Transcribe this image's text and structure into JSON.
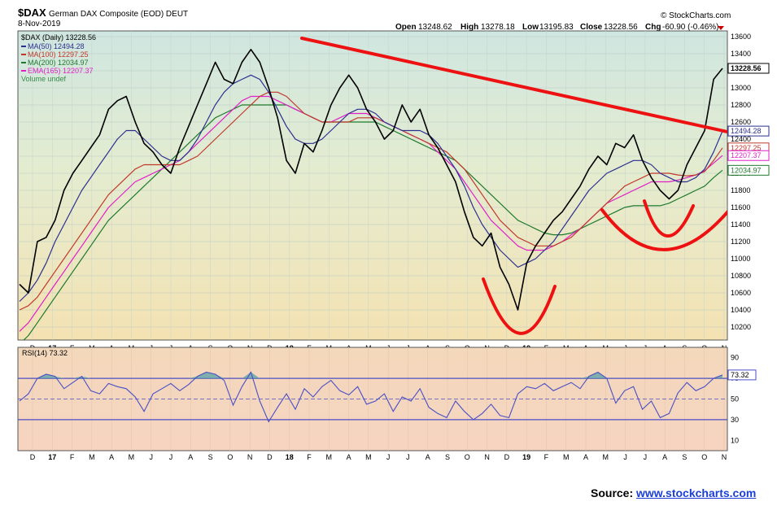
{
  "header": {
    "symbol": "$DAX",
    "name": "German DAX Composite (EOD) DEUT",
    "date": "8-Nov-2019",
    "brand": "© StockCharts.com",
    "open_label": "Open",
    "open": "13248.62",
    "high_label": "High",
    "high": "13278.18",
    "low_label": "Low",
    "low": "13195.83",
    "close_label": "Close",
    "close": "13228.56",
    "chg_label": "Chg",
    "chg": "-60.90 (-0.46%)"
  },
  "legend": {
    "price": "$DAX (Daily) 13228.56",
    "ma50": "MA(50) 12494.28",
    "ma100": "MA(100) 12297.25",
    "ma200": "MA(200) 12034.97",
    "ema165": "EMA(165) 12207.37",
    "volume": "Volume undef"
  },
  "rsi_legend": "RSI(14) 73.32",
  "source": {
    "label": "Source:",
    "link": "www.stockcharts.com"
  },
  "colors": {
    "price": "#000000",
    "ma50": "#2b2f8f",
    "ma100": "#c0392b",
    "ma200": "#1e7a2e",
    "ema165": "#e020c8",
    "annotation": "#ee1111",
    "rsi": "#4a4fc4"
  },
  "chart_data": [
    {
      "type": "line",
      "title": "$DAX German DAX Composite (EOD) DEUT",
      "ylim": [
        10000,
        13700
      ],
      "yticks": [
        "13600",
        "13400",
        "13200",
        "13000",
        "12800",
        "12600",
        "12400",
        "12200",
        "12000",
        "11800",
        "11600",
        "11400",
        "11200",
        "11000",
        "10800",
        "10600",
        "10400",
        "10200"
      ],
      "x_ticks": [
        "D",
        "17",
        "F",
        "M",
        "A",
        "M",
        "J",
        "J",
        "A",
        "S",
        "O",
        "N",
        "D",
        "18",
        "F",
        "M",
        "A",
        "M",
        "J",
        "J",
        "A",
        "S",
        "O",
        "N",
        "D",
        "19",
        "F",
        "M",
        "A",
        "M",
        "J",
        "J",
        "A",
        "S",
        "O",
        "N"
      ],
      "value_labels": [
        {
          "value": 13228.56,
          "label": "13228.56",
          "series": "price"
        },
        {
          "value": 12494.28,
          "label": "12494.28",
          "series": "ma50"
        },
        {
          "value": 12297.25,
          "label": "12297.25",
          "series": "ma100"
        },
        {
          "value": 12207.37,
          "label": "12207.37",
          "series": "ema165"
        },
        {
          "value": 12034.97,
          "label": "12034.97",
          "series": "ma200"
        }
      ],
      "series": [
        {
          "name": "$DAX (Daily)",
          "key": "price",
          "values": [
            10700,
            10600,
            11200,
            11250,
            11450,
            11800,
            12000,
            12150,
            12300,
            12450,
            12750,
            12850,
            12900,
            12600,
            12350,
            12250,
            12100,
            12000,
            12300,
            12550,
            12800,
            13050,
            13300,
            13100,
            13050,
            13300,
            13450,
            13300,
            13000,
            12650,
            12150,
            12000,
            12350,
            12250,
            12500,
            12800,
            13000,
            13150,
            13000,
            12750,
            12600,
            12400,
            12500,
            12800,
            12600,
            12750,
            12450,
            12300,
            12100,
            11900,
            11550,
            11250,
            11150,
            11300,
            10900,
            10700,
            10400,
            10950,
            11150,
            11300,
            11450,
            11550,
            11700,
            11850,
            12050,
            12200,
            12100,
            12350,
            12300,
            12450,
            12150,
            11950,
            11800,
            11700,
            11800,
            12100,
            12300,
            12500,
            13100,
            13228.56
          ]
        },
        {
          "name": "MA(50)",
          "key": "ma50",
          "values": [
            10500,
            10600,
            10750,
            10950,
            11200,
            11400,
            11600,
            11800,
            11950,
            12100,
            12250,
            12400,
            12500,
            12500,
            12400,
            12300,
            12200,
            12150,
            12150,
            12250,
            12400,
            12600,
            12800,
            12950,
            13050,
            13100,
            13150,
            13100,
            12950,
            12750,
            12550,
            12400,
            12350,
            12350,
            12400,
            12500,
            12600,
            12700,
            12750,
            12750,
            12700,
            12600,
            12550,
            12500,
            12500,
            12500,
            12450,
            12350,
            12200,
            12050,
            11850,
            11600,
            11400,
            11250,
            11100,
            11000,
            10900,
            10950,
            11000,
            11100,
            11200,
            11350,
            11500,
            11650,
            11800,
            11900,
            12000,
            12050,
            12100,
            12150,
            12150,
            12100,
            12000,
            11950,
            11900,
            11900,
            11950,
            12050,
            12250,
            12494.28
          ]
        },
        {
          "name": "MA(100)",
          "key": "ma100",
          "values": [
            10400,
            10450,
            10550,
            10700,
            10850,
            11000,
            11150,
            11300,
            11450,
            11600,
            11750,
            11850,
            11950,
            12050,
            12100,
            12100,
            12100,
            12100,
            12100,
            12150,
            12200,
            12300,
            12400,
            12500,
            12600,
            12700,
            12800,
            12900,
            12950,
            12950,
            12900,
            12800,
            12700,
            12650,
            12600,
            12600,
            12600,
            12600,
            12650,
            12650,
            12650,
            12600,
            12550,
            12500,
            12450,
            12400,
            12350,
            12300,
            12250,
            12150,
            12050,
            11900,
            11750,
            11600,
            11450,
            11350,
            11250,
            11200,
            11150,
            11150,
            11150,
            11200,
            11250,
            11350,
            11450,
            11550,
            11650,
            11750,
            11850,
            11900,
            11950,
            12000,
            12000,
            12000,
            11980,
            11970,
            11980,
            12020,
            12150,
            12297.25
          ]
        },
        {
          "name": "MA(200)",
          "key": "ma200",
          "values": [
            10000,
            10100,
            10250,
            10400,
            10550,
            10700,
            10850,
            11000,
            11150,
            11300,
            11450,
            11550,
            11650,
            11750,
            11850,
            11950,
            12050,
            12150,
            12250,
            12350,
            12450,
            12550,
            12650,
            12700,
            12750,
            12800,
            12800,
            12800,
            12800,
            12800,
            12800,
            12750,
            12700,
            12650,
            12600,
            12600,
            12600,
            12600,
            12600,
            12600,
            12600,
            12550,
            12500,
            12450,
            12400,
            12350,
            12300,
            12250,
            12200,
            12150,
            12050,
            11950,
            11850,
            11750,
            11650,
            11550,
            11450,
            11400,
            11350,
            11300,
            11280,
            11280,
            11300,
            11350,
            11400,
            11450,
            11500,
            11550,
            11600,
            11620,
            11620,
            11620,
            11620,
            11650,
            11700,
            11750,
            11800,
            11850,
            11950,
            12034.97
          ]
        },
        {
          "name": "EMA(165)",
          "key": "ema165",
          "values": [
            10150,
            10250,
            10400,
            10550,
            10700,
            10850,
            11000,
            11150,
            11300,
            11450,
            11600,
            11700,
            11800,
            11900,
            11950,
            12000,
            12050,
            12100,
            12150,
            12250,
            12350,
            12450,
            12550,
            12650,
            12750,
            12850,
            12900,
            12900,
            12900,
            12850,
            12800,
            12750,
            12700,
            12650,
            12600,
            12600,
            12650,
            12700,
            12700,
            12700,
            12650,
            12600,
            12550,
            12500,
            12450,
            12400,
            12350,
            12250,
            12150,
            12050,
            11900,
            11750,
            11600,
            11450,
            11350,
            11250,
            11150,
            11100,
            11100,
            11100,
            11150,
            11200,
            11280,
            11350,
            11450,
            11550,
            11650,
            11700,
            11750,
            11800,
            11850,
            11900,
            11900,
            11900,
            11920,
            11950,
            11980,
            12030,
            12120,
            12207.37
          ]
        }
      ]
    },
    {
      "type": "line",
      "title": "RSI(14) 73.32",
      "ylim": [
        0,
        100
      ],
      "yticks": [
        "90",
        "70",
        "50",
        "30",
        "10"
      ],
      "reference_lines": [
        70,
        50,
        30
      ],
      "value_labels": [
        {
          "value": 73.32,
          "label": "73.32"
        }
      ],
      "series": [
        {
          "name": "RSI(14)",
          "key": "rsi",
          "values": [
            48,
            55,
            70,
            74,
            72,
            60,
            66,
            72,
            58,
            55,
            65,
            62,
            60,
            52,
            38,
            55,
            60,
            65,
            58,
            64,
            72,
            76,
            74,
            68,
            44,
            62,
            76,
            48,
            28,
            42,
            55,
            40,
            60,
            52,
            62,
            68,
            58,
            54,
            62,
            45,
            48,
            55,
            38,
            52,
            48,
            60,
            42,
            36,
            32,
            48,
            38,
            30,
            36,
            45,
            34,
            32,
            55,
            62,
            60,
            65,
            58,
            62,
            66,
            60,
            72,
            76,
            70,
            46,
            58,
            62,
            40,
            48,
            32,
            36,
            56,
            66,
            58,
            62,
            70,
            73.32
          ]
        }
      ]
    }
  ]
}
